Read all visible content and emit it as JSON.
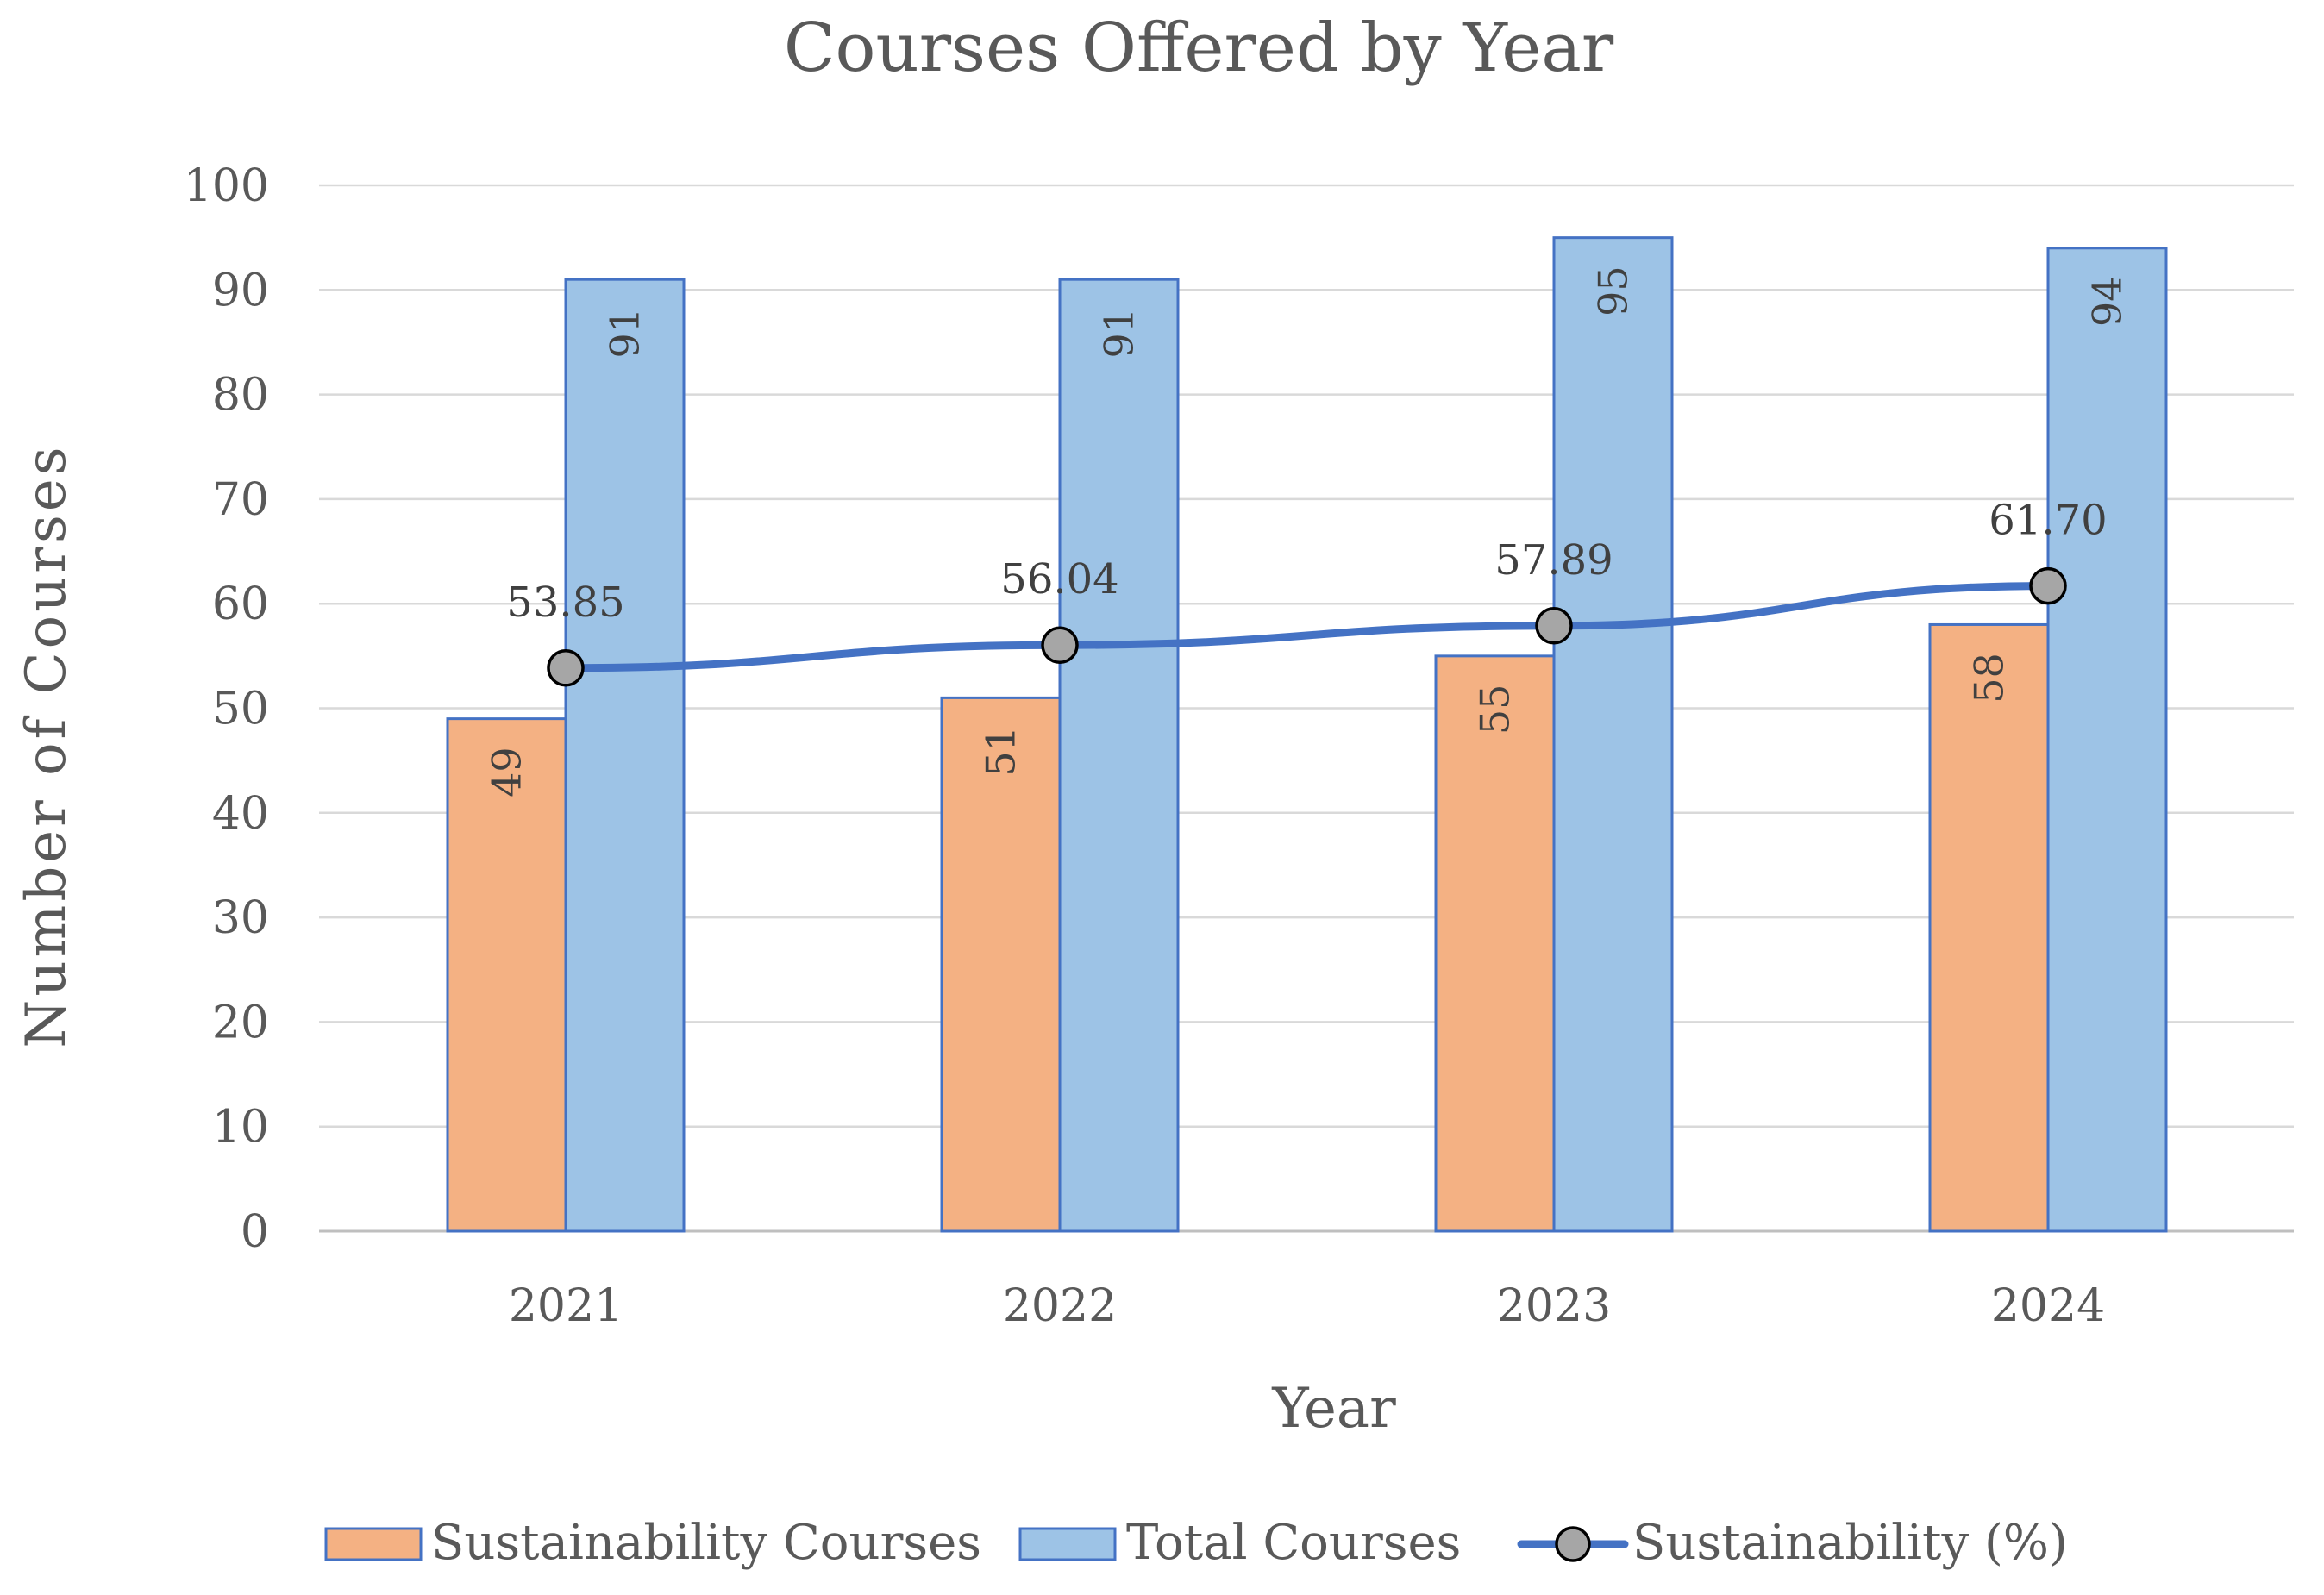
{
  "chart_data": {
    "type": "bar",
    "title": "Courses Offered by Year",
    "xlabel": "Year",
    "ylabel": "Number of Courses",
    "ylim": [
      0,
      100
    ],
    "yticks": [
      0,
      10,
      20,
      30,
      40,
      50,
      60,
      70,
      80,
      90,
      100
    ],
    "categories": [
      "2021",
      "2022",
      "2023",
      "2024"
    ],
    "series": [
      {
        "name": "Sustainability Courses",
        "kind": "bar",
        "color": "#F4B183",
        "edge": "#4472C4",
        "values": [
          49,
          51,
          55,
          58
        ],
        "labels": [
          "49",
          "51",
          "55",
          "58"
        ]
      },
      {
        "name": "Total Courses",
        "kind": "bar",
        "color": "#9DC3E6",
        "edge": "#4472C4",
        "values": [
          91,
          91,
          95,
          94
        ],
        "labels": [
          "91",
          "91",
          "95",
          "94"
        ]
      },
      {
        "name": "Sustainability (%)",
        "kind": "line",
        "color": "#4472C4",
        "marker_fill": "#A6A6A6",
        "values": [
          53.85,
          56.04,
          57.89,
          61.7
        ],
        "labels": [
          "53.85",
          "56.04",
          "57.89",
          "61.70"
        ]
      }
    ],
    "grid": true,
    "legend": "bottom"
  }
}
